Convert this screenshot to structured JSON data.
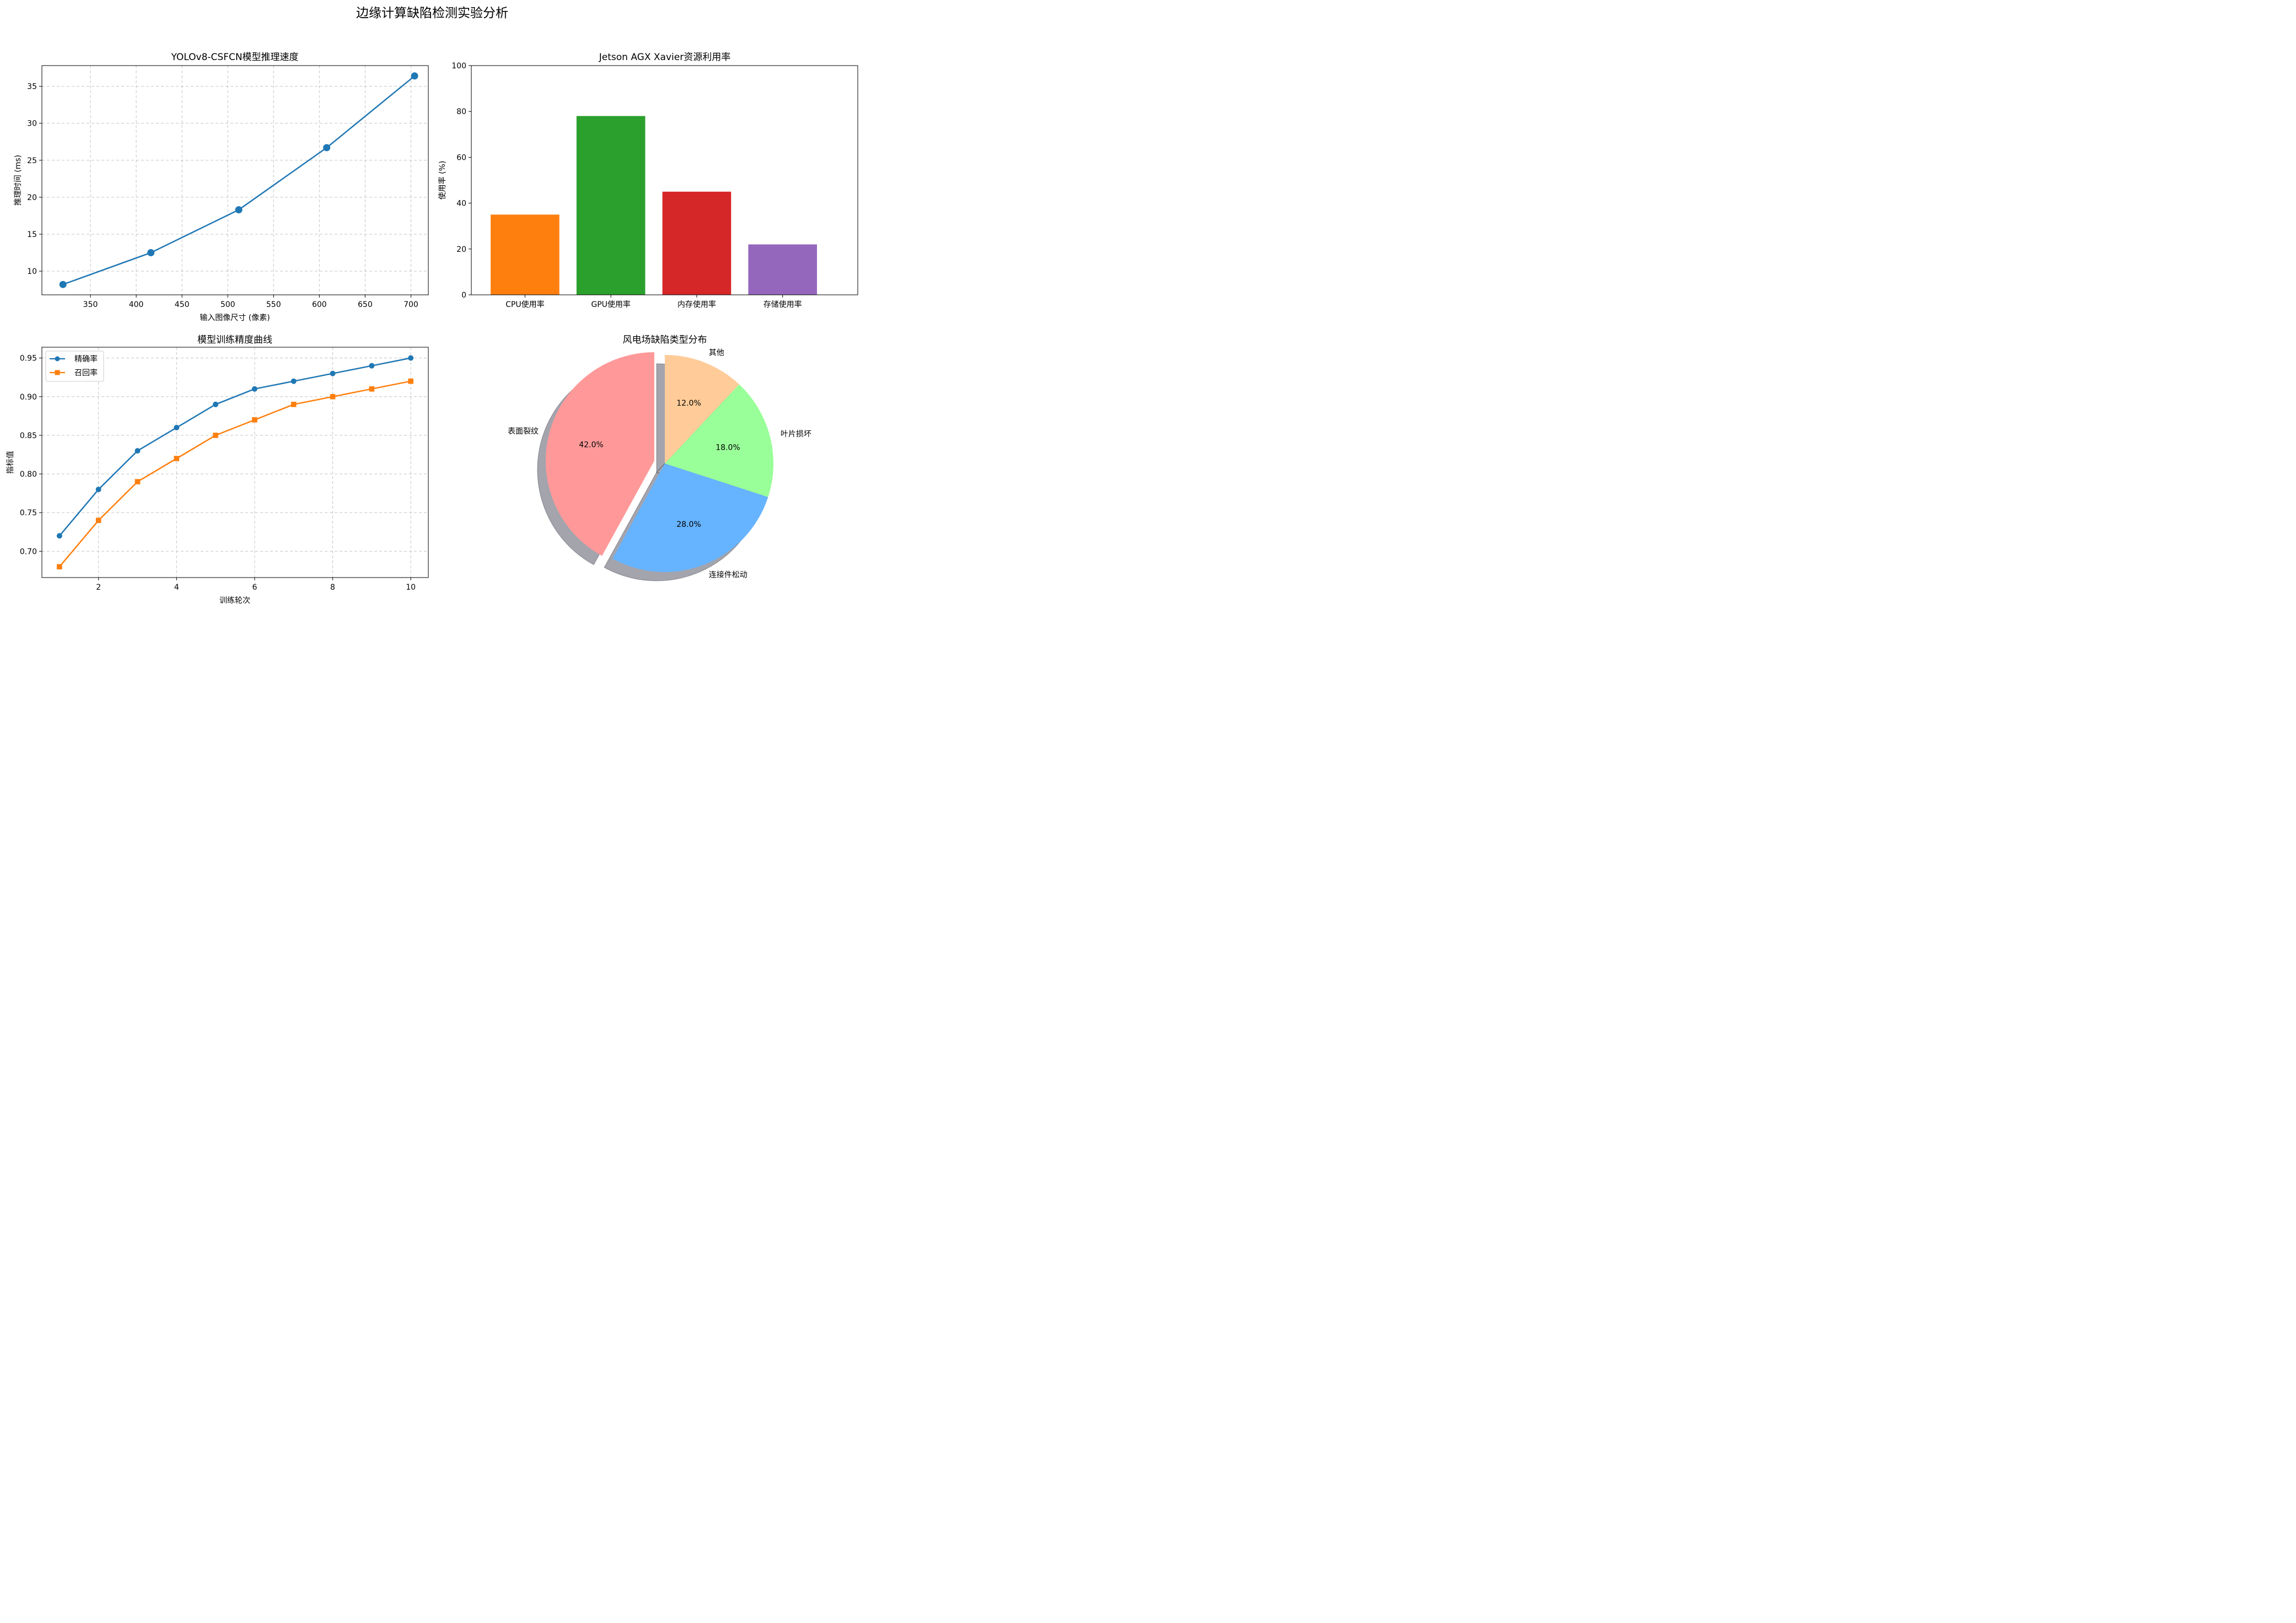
{
  "suptitle": "边缘计算缺陷检测实验分析",
  "chart_data": [
    {
      "type": "line",
      "title": "YOLOv8-CSFCN模型推理速度",
      "xlabel": "输入图像尺寸 (像素)",
      "ylabel": "推理时间 (ms)",
      "x": [
        320,
        416,
        512,
        608,
        704
      ],
      "series": [
        {
          "values": [
            8.2,
            12.5,
            18.3,
            26.7,
            36.4
          ],
          "color": "#1f77b4"
        }
      ],
      "xlim": [
        297,
        719
      ],
      "ylim": [
        6.8,
        37.8
      ],
      "xticks": [
        "350",
        "400",
        "450",
        "500",
        "550",
        "600",
        "650",
        "700"
      ],
      "yticks": [
        "10",
        "15",
        "20",
        "25",
        "30",
        "35"
      ],
      "grid": true
    },
    {
      "type": "bar",
      "title": "Jetson AGX Xavier资源利用率",
      "ylabel": "使用率 (%)",
      "categories": [
        "CPU使用率",
        "GPU使用率",
        "内存使用率",
        "存储使用率"
      ],
      "values": [
        35,
        78,
        45,
        22
      ],
      "colors": [
        "#ff7f0e",
        "#2ca02c",
        "#d62728",
        "#9467bd"
      ],
      "ylim": [
        0,
        100
      ],
      "yticks": [
        "0",
        "20",
        "40",
        "60",
        "80",
        "100"
      ],
      "grid": false
    },
    {
      "type": "line",
      "title": "模型训练精度曲线",
      "xlabel": "训练轮次",
      "ylabel": "指标值",
      "x": [
        1,
        2,
        3,
        4,
        5,
        6,
        7,
        8,
        9,
        10
      ],
      "series": [
        {
          "name": "精确率",
          "values": [
            0.72,
            0.78,
            0.83,
            0.86,
            0.89,
            0.91,
            0.92,
            0.93,
            0.94,
            0.95
          ],
          "color": "#1f77b4",
          "marker": "circle"
        },
        {
          "name": "召回率",
          "values": [
            0.68,
            0.74,
            0.79,
            0.82,
            0.85,
            0.87,
            0.89,
            0.9,
            0.91,
            0.92
          ],
          "color": "#ff7f0e",
          "marker": "square"
        }
      ],
      "xlim": [
        0.55,
        10.45
      ],
      "ylim": [
        0.666,
        0.964
      ],
      "xticks": [
        "2",
        "4",
        "6",
        "8",
        "10"
      ],
      "yticks": [
        "0.70",
        "0.75",
        "0.80",
        "0.85",
        "0.90",
        "0.95"
      ],
      "legend": "upper-left",
      "grid": true
    },
    {
      "type": "pie",
      "title": "风电场缺陷类型分布",
      "labels": [
        "表面裂纹",
        "连接件松动",
        "叶片损坏",
        "其他"
      ],
      "values": [
        42.0,
        28.0,
        18.0,
        12.0
      ],
      "percent_labels": [
        "42.0%",
        "28.0%",
        "18.0%",
        "12.0%"
      ],
      "colors": [
        "#ff9999",
        "#66b3ff",
        "#99ff99",
        "#ffcc99"
      ],
      "explode": [
        0.1,
        0,
        0,
        0
      ],
      "shadow": true,
      "start_angle": 90
    }
  ]
}
